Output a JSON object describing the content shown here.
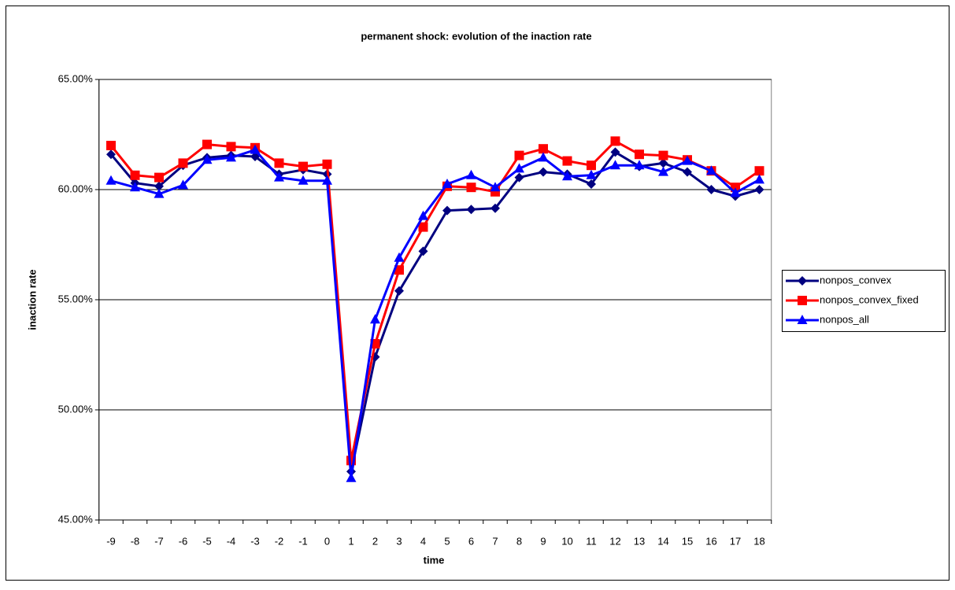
{
  "chart_data": {
    "type": "line",
    "title": "permanent shock: evolution of the inaction rate",
    "x_label": "time",
    "y_label": "inaction rate",
    "categories": [
      "-9",
      "-8",
      "-7",
      "-6",
      "-5",
      "-4",
      "-3",
      "-2",
      "-1",
      "0",
      "1",
      "2",
      "3",
      "4",
      "5",
      "6",
      "7",
      "8",
      "9",
      "10",
      "11",
      "12",
      "13",
      "14",
      "15",
      "16",
      "17",
      "18"
    ],
    "ylim": [
      45,
      65
    ],
    "yticks": [
      {
        "value": 45,
        "label": "45.00%"
      },
      {
        "value": 50,
        "label": "50.00%"
      },
      {
        "value": 55,
        "label": "55.00%"
      },
      {
        "value": 60,
        "label": "60.00%"
      },
      {
        "value": 65,
        "label": "65.00%"
      }
    ],
    "grid": true,
    "legend": "right",
    "series": [
      {
        "name": "nonpos_convex",
        "color": "#000080",
        "marker": "diamond",
        "values": [
          61.6,
          60.3,
          60.15,
          61.1,
          61.45,
          61.55,
          61.5,
          60.7,
          60.9,
          60.7,
          47.2,
          52.4,
          55.4,
          57.2,
          59.05,
          59.1,
          59.15,
          60.55,
          60.8,
          60.7,
          60.25,
          61.7,
          61.05,
          61.2,
          60.8,
          60.0,
          59.7,
          60.0
        ]
      },
      {
        "name": "nonpos_convex_fixed",
        "color": "#ff0000",
        "marker": "square",
        "values": [
          62.0,
          60.65,
          60.55,
          61.2,
          62.05,
          61.95,
          61.9,
          61.2,
          61.05,
          61.15,
          47.7,
          53.0,
          56.35,
          58.3,
          60.15,
          60.1,
          59.9,
          61.55,
          61.85,
          61.3,
          61.1,
          62.2,
          61.6,
          61.55,
          61.35,
          60.85,
          60.1,
          60.85
        ]
      },
      {
        "name": "nonpos_all",
        "color": "#0000ff",
        "marker": "triangle",
        "values": [
          60.4,
          60.1,
          59.8,
          60.2,
          61.35,
          61.45,
          61.8,
          60.55,
          60.4,
          60.4,
          46.9,
          54.1,
          56.9,
          58.8,
          60.25,
          60.65,
          60.1,
          60.95,
          61.45,
          60.6,
          60.65,
          61.1,
          61.1,
          60.8,
          61.3,
          60.85,
          59.85,
          60.45
        ]
      }
    ]
  }
}
